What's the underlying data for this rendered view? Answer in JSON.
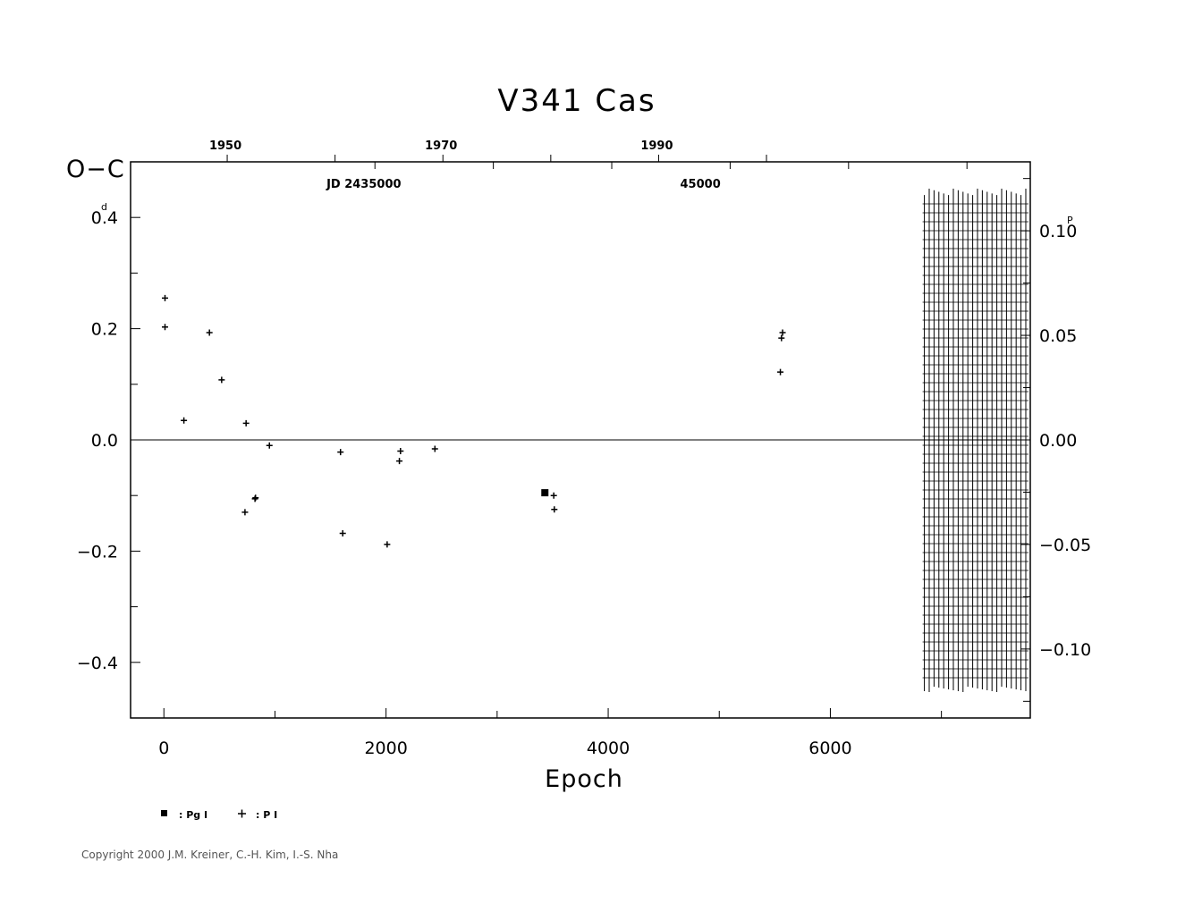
{
  "chart_data": {
    "type": "scatter",
    "title": "V341  Cas",
    "xlabel": "Epoch",
    "ylabel": "O−C",
    "ylabel_unit": "d",
    "y2_unit": "P",
    "xlim": [
      -300,
      7800
    ],
    "ylim": [
      -0.5,
      0.5
    ],
    "x_ticks": [
      0,
      2000,
      4000,
      6000
    ],
    "x_tick_labels": [
      "0",
      "2000",
      "4000",
      "6000"
    ],
    "y_ticks": [
      0.4,
      0.2,
      0.0,
      -0.2,
      -0.4
    ],
    "y_tick_labels": [
      "0.4",
      "0.2",
      "0.0",
      "−0.2",
      "−0.4"
    ],
    "y2_ticks": [
      0.1,
      0.05,
      0.0,
      -0.05,
      -0.1
    ],
    "y2_tick_labels": [
      "0.10",
      "0.05",
      "0.00",
      "−0.05",
      "−0.10"
    ],
    "y2_period_days": 3.76,
    "top_year_ticks": [
      1950,
      1970,
      1990
    ],
    "top_year_labels": [
      "1950",
      "1970",
      "1990"
    ],
    "top_jd_labels": [
      {
        "text": "JD  2435000",
        "epoch": 1800
      },
      {
        "text": "45000",
        "epoch": 4830
      }
    ],
    "zero_line": true,
    "hatched_region_start_epoch": 6750,
    "series": [
      {
        "name": ": Pg I",
        "marker": "filled-square",
        "points": [
          [
            3430,
            -0.095
          ]
        ]
      },
      {
        "name": ": P I",
        "marker": "plus",
        "points": [
          [
            10,
            0.255
          ],
          [
            10,
            0.203
          ],
          [
            180,
            0.035
          ],
          [
            410,
            0.193
          ],
          [
            520,
            0.108
          ],
          [
            740,
            0.03
          ],
          [
            730,
            -0.13
          ],
          [
            820,
            -0.106
          ],
          [
            825,
            -0.104
          ],
          [
            950,
            -0.01
          ],
          [
            1590,
            -0.022
          ],
          [
            1610,
            -0.168
          ],
          [
            2010,
            -0.188
          ],
          [
            2120,
            -0.038
          ],
          [
            2130,
            -0.02
          ],
          [
            2440,
            -0.016
          ],
          [
            3510,
            -0.1
          ],
          [
            3515,
            -0.125
          ],
          [
            5550,
            0.122
          ],
          [
            5560,
            0.183
          ],
          [
            5570,
            0.193
          ]
        ]
      }
    ]
  },
  "legend": {
    "pg_label": ": Pg  I",
    "p_label": ": P  I"
  },
  "copyright": "Copyright 2000 J.M. Kreiner, C.-H. Kim, I.-S. Nha"
}
